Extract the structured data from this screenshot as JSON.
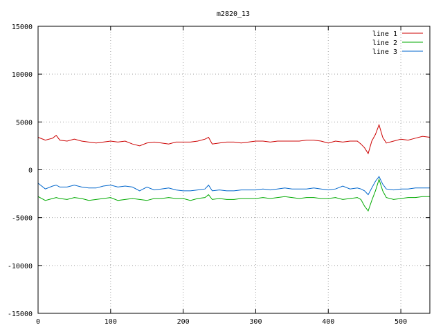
{
  "chart_data": {
    "type": "line",
    "title": "m2820_13",
    "xlabel": "",
    "ylabel": "",
    "xlim": [
      0,
      540
    ],
    "ylim": [
      -15000,
      15000
    ],
    "grid": true,
    "legend_position": "top-right",
    "x_ticks": [
      0,
      100,
      200,
      300,
      400,
      500
    ],
    "y_ticks": [
      -15000,
      -10000,
      -5000,
      0,
      5000,
      10000,
      15000
    ],
    "x": [
      0,
      10,
      20,
      25,
      30,
      40,
      50,
      60,
      70,
      80,
      90,
      100,
      110,
      120,
      130,
      140,
      150,
      160,
      170,
      180,
      190,
      200,
      210,
      220,
      230,
      235,
      240,
      250,
      260,
      270,
      280,
      290,
      300,
      310,
      320,
      330,
      340,
      350,
      360,
      370,
      380,
      390,
      400,
      410,
      420,
      430,
      440,
      445,
      450,
      455,
      460,
      465,
      470,
      475,
      480,
      490,
      500,
      510,
      520,
      530,
      540
    ],
    "series": [
      {
        "name": "line 1",
        "color": "#cc0000",
        "values": [
          3400,
          3100,
          3300,
          3600,
          3100,
          3000,
          3200,
          3000,
          2900,
          2800,
          2900,
          3000,
          2900,
          3000,
          2700,
          2500,
          2800,
          2900,
          2800,
          2700,
          2900,
          2900,
          2900,
          3000,
          3200,
          3400,
          2700,
          2800,
          2900,
          2900,
          2800,
          2900,
          3000,
          3000,
          2900,
          3000,
          3000,
          3000,
          3000,
          3100,
          3100,
          3000,
          2800,
          3000,
          2900,
          3000,
          3000,
          2700,
          2300,
          1700,
          3000,
          3700,
          4700,
          3400,
          2800,
          3000,
          3200,
          3100,
          3300,
          3500,
          3400
        ]
      },
      {
        "name": "line 2",
        "color": "#00aa00",
        "values": [
          -2800,
          -3200,
          -3000,
          -2900,
          -3000,
          -3100,
          -2900,
          -3000,
          -3200,
          -3100,
          -3000,
          -2900,
          -3200,
          -3100,
          -3000,
          -3100,
          -3200,
          -3000,
          -3000,
          -2900,
          -3000,
          -3000,
          -3200,
          -3000,
          -2900,
          -2600,
          -3100,
          -3000,
          -3100,
          -3100,
          -3000,
          -3000,
          -3000,
          -2900,
          -3000,
          -2900,
          -2800,
          -2900,
          -3000,
          -2900,
          -2900,
          -3000,
          -3000,
          -2900,
          -3100,
          -3000,
          -2900,
          -3100,
          -3800,
          -4300,
          -3200,
          -2200,
          -1000,
          -2200,
          -2900,
          -3100,
          -3000,
          -2900,
          -2900,
          -2800,
          -2800
        ]
      },
      {
        "name": "line 3",
        "color": "#0066cc",
        "values": [
          -1400,
          -2000,
          -1700,
          -1600,
          -1800,
          -1800,
          -1600,
          -1800,
          -1900,
          -1900,
          -1700,
          -1600,
          -1800,
          -1700,
          -1800,
          -2200,
          -1800,
          -2100,
          -2000,
          -1900,
          -2100,
          -2200,
          -2200,
          -2100,
          -2000,
          -1600,
          -2200,
          -2100,
          -2200,
          -2200,
          -2100,
          -2100,
          -2100,
          -2000,
          -2100,
          -2000,
          -1900,
          -2000,
          -2000,
          -2000,
          -1900,
          -2000,
          -2100,
          -2000,
          -1700,
          -2000,
          -1900,
          -2000,
          -2200,
          -2600,
          -1900,
          -1200,
          -700,
          -1500,
          -2000,
          -2100,
          -2000,
          -2000,
          -1900,
          -1900,
          -1900
        ]
      }
    ]
  }
}
